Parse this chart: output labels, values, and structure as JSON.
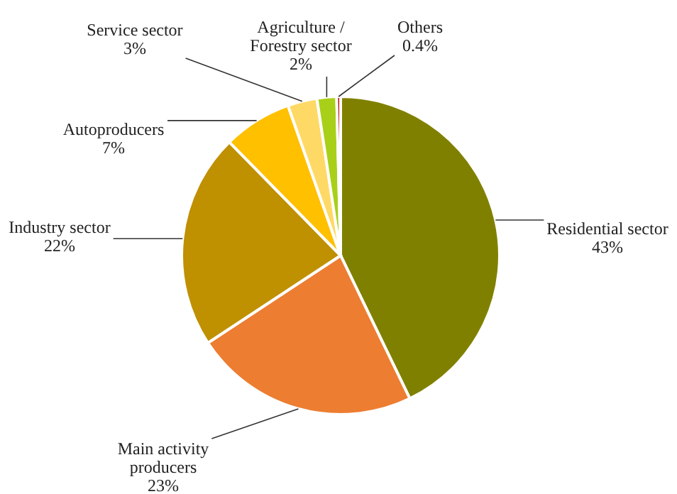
{
  "chart_data": {
    "type": "pie",
    "categories": [
      "Residential sector",
      "Main activity producers",
      "Industry sector",
      "Autoproducers",
      "Service sector",
      "Agriculture / Forestry sector",
      "Others"
    ],
    "values": [
      43,
      23,
      22,
      7,
      3,
      2,
      0.4
    ],
    "colors": [
      "#808000",
      "#ed7d31",
      "#bf9000",
      "#ffc000",
      "#ffd966",
      "#a9d018",
      "#c00000"
    ],
    "value_labels": [
      "43%",
      "23%",
      "22%",
      "7%",
      "3%",
      "2%",
      "0.4%"
    ]
  }
}
